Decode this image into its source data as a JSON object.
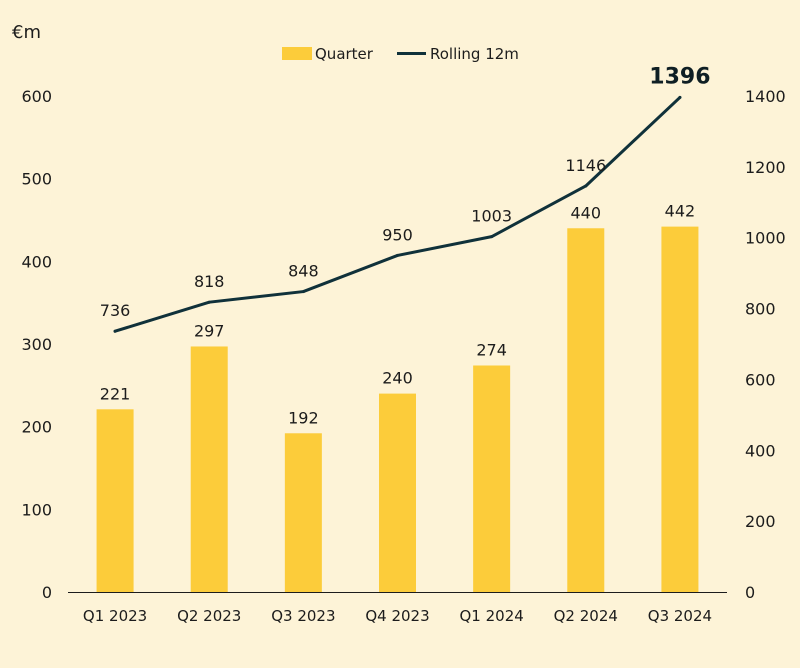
{
  "chart_data": {
    "type": "bar+line",
    "unit_label": "€m",
    "categories": [
      "Q1 2023",
      "Q2 2023",
      "Q3 2023",
      "Q4 2023",
      "Q1 2024",
      "Q2 2024",
      "Q3 2024"
    ],
    "series": [
      {
        "name": "Quarter",
        "type": "bar",
        "axis": "left",
        "values": [
          221,
          297,
          192,
          240,
          274,
          440,
          442
        ],
        "color": "#fccc3a"
      },
      {
        "name": "Rolling 12m",
        "type": "line",
        "axis": "right",
        "values": [
          736,
          818,
          848,
          950,
          1003,
          1146,
          1396
        ],
        "color": "#10313a"
      }
    ],
    "y_left": {
      "range": [
        0,
        600
      ],
      "ticks": [
        "0",
        "100",
        "200",
        "300",
        "400",
        "500",
        "600"
      ]
    },
    "y_right": {
      "range": [
        0,
        1400
      ],
      "ticks": [
        "0",
        "200",
        "400",
        "600",
        "800",
        "1000",
        "1200",
        "1400"
      ]
    },
    "bar_labels": [
      "221",
      "297",
      "192",
      "240",
      "274",
      "440",
      "442"
    ],
    "line_labels": [
      "736",
      "818",
      "848",
      "950",
      "1003",
      "1146",
      "1396"
    ],
    "highlight_last_line_label": true,
    "legend": {
      "position": "top-center"
    },
    "grid": false
  }
}
